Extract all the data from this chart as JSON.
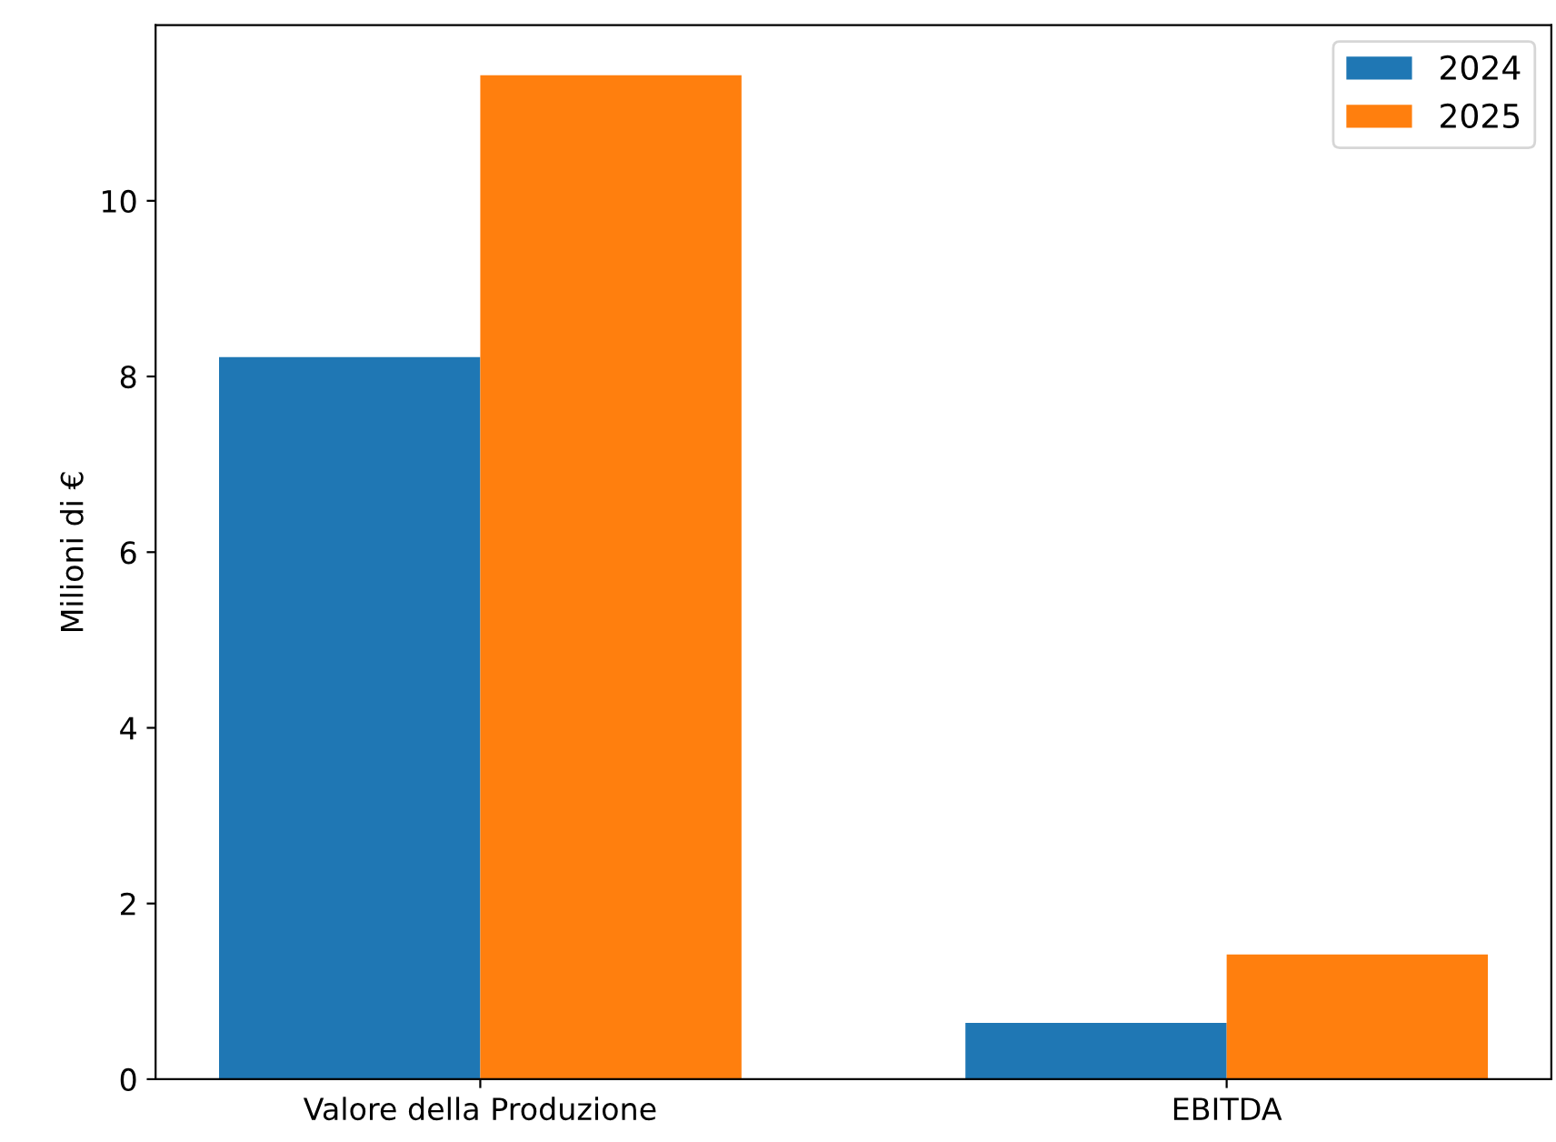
{
  "chart_data": {
    "type": "bar",
    "ylabel": "Milioni di €",
    "categories": [
      "Valore della Produzione",
      "EBITDA"
    ],
    "series": [
      {
        "name": "2024",
        "color": "#1f77b4",
        "values": [
          8.22,
          0.64
        ]
      },
      {
        "name": "2025",
        "color": "#ff7f0e",
        "values": [
          11.43,
          1.42
        ]
      }
    ],
    "ylim": [
      0,
      12.0
    ],
    "yticks": [
      0,
      2,
      4,
      6,
      8,
      10
    ],
    "grid": false,
    "legend": "top right"
  }
}
